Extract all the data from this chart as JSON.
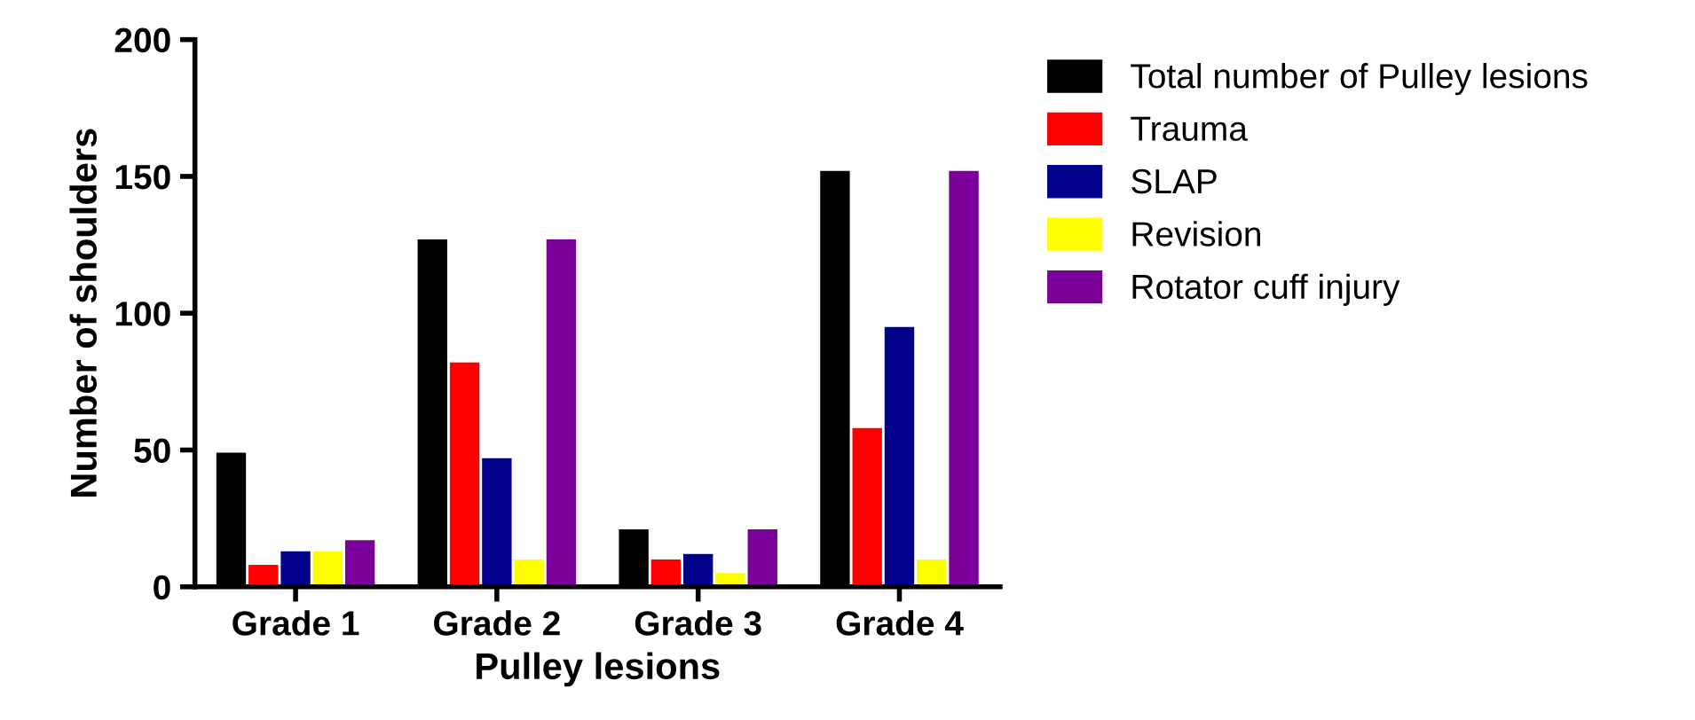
{
  "chart_data": {
    "type": "bar",
    "xlabel": "Pulley lesions",
    "ylabel": "Number of shoulders",
    "categories": [
      "Grade 1",
      "Grade 2",
      "Grade 3",
      "Grade 4"
    ],
    "series": [
      {
        "name": "Total number of Pulley lesions",
        "color": "#000000",
        "values": [
          49,
          127,
          21,
          152
        ]
      },
      {
        "name": "Trauma",
        "color": "#ff0000",
        "values": [
          8,
          82,
          10,
          58
        ]
      },
      {
        "name": "SLAP",
        "color": "#00008b",
        "values": [
          13,
          47,
          12,
          95
        ]
      },
      {
        "name": "Revision",
        "color": "#ffff00",
        "values": [
          13,
          10,
          5,
          10
        ]
      },
      {
        "name": "Rotator cuff injury",
        "color": "#7b0099",
        "values": [
          17,
          127,
          21,
          152
        ]
      }
    ],
    "ylim": [
      0,
      200
    ],
    "yticks": [
      0,
      50,
      100,
      150,
      200
    ],
    "grid": false,
    "legend": "top right"
  }
}
